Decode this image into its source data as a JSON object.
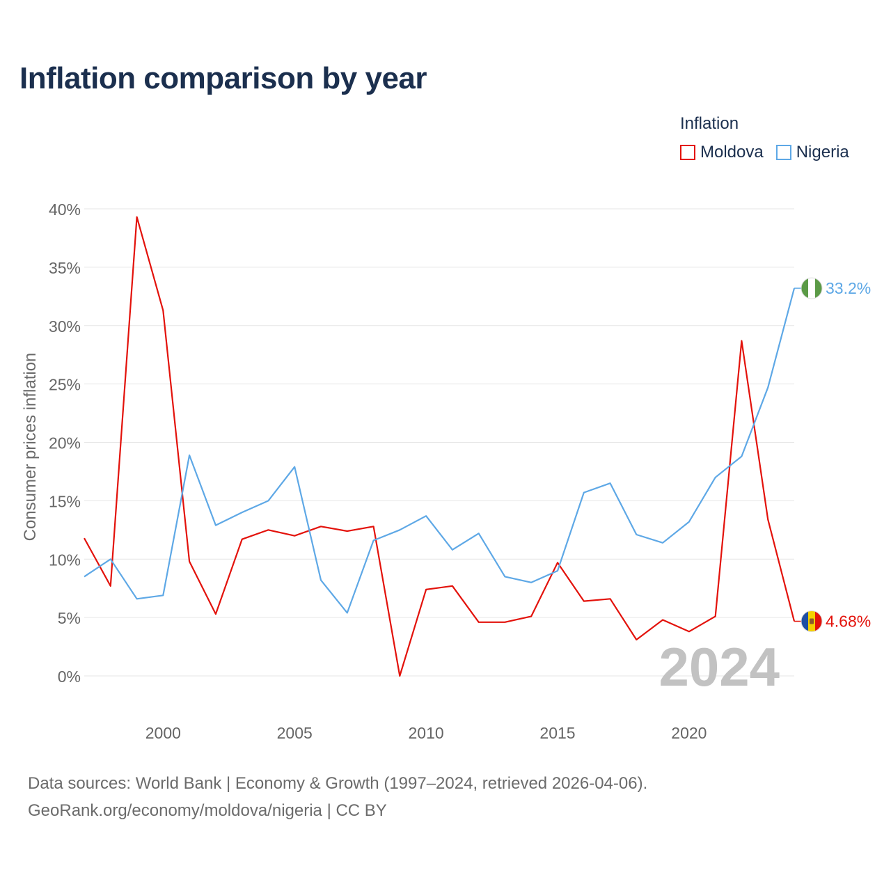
{
  "title": "Inflation comparison by year",
  "legend": {
    "title": "Inflation",
    "items": [
      {
        "label": "Moldova",
        "color": "#e3120b"
      },
      {
        "label": "Nigeria",
        "color": "#5ea8e6"
      }
    ]
  },
  "footer": {
    "line1": "Data sources: World Bank | Economy & Growth (1997–2024, retrieved 2026-04-06).",
    "line2": "GeoRank.org/economy/moldova/nigeria | CC BY"
  },
  "chart_data": {
    "type": "line",
    "title": "Inflation comparison by year",
    "xlabel": "",
    "ylabel": "Consumer prices inflation",
    "x": [
      1997,
      1998,
      1999,
      2000,
      2001,
      2002,
      2003,
      2004,
      2005,
      2006,
      2007,
      2008,
      2009,
      2010,
      2011,
      2012,
      2013,
      2014,
      2015,
      2016,
      2017,
      2018,
      2019,
      2020,
      2021,
      2022,
      2023,
      2024
    ],
    "xlim": [
      1997,
      2024
    ],
    "ylim": [
      0,
      40
    ],
    "y_ticks": [
      0,
      5,
      10,
      15,
      20,
      25,
      30,
      35,
      40
    ],
    "y_tick_labels": [
      "0%",
      "5%",
      "10%",
      "15%",
      "20%",
      "25%",
      "30%",
      "35%",
      "40%"
    ],
    "x_ticks": [
      2000,
      2005,
      2010,
      2015,
      2020
    ],
    "x_tick_labels": [
      "2000",
      "2005",
      "2010",
      "2015",
      "2020"
    ],
    "grid": true,
    "legend_position": "top-right",
    "year_watermark": "2024",
    "series": [
      {
        "name": "Moldova",
        "color": "#e3120b",
        "end_label": "4.68%",
        "flag": "moldova",
        "values": [
          11.8,
          7.7,
          39.3,
          31.3,
          9.8,
          5.3,
          11.7,
          12.5,
          12.0,
          12.8,
          12.4,
          12.8,
          0.0,
          7.4,
          7.7,
          4.6,
          4.6,
          5.1,
          9.7,
          6.4,
          6.6,
          3.1,
          4.8,
          3.8,
          5.1,
          28.7,
          13.4,
          4.68
        ]
      },
      {
        "name": "Nigeria",
        "color": "#5ea8e6",
        "end_label": "33.2%",
        "flag": "nigeria",
        "values": [
          8.5,
          10.0,
          6.6,
          6.9,
          18.9,
          12.9,
          14.0,
          15.0,
          17.9,
          8.2,
          5.4,
          11.6,
          12.5,
          13.7,
          10.8,
          12.2,
          8.5,
          8.0,
          9.0,
          15.7,
          16.5,
          12.1,
          11.4,
          13.2,
          17.0,
          18.8,
          24.7,
          33.2
        ]
      }
    ]
  }
}
